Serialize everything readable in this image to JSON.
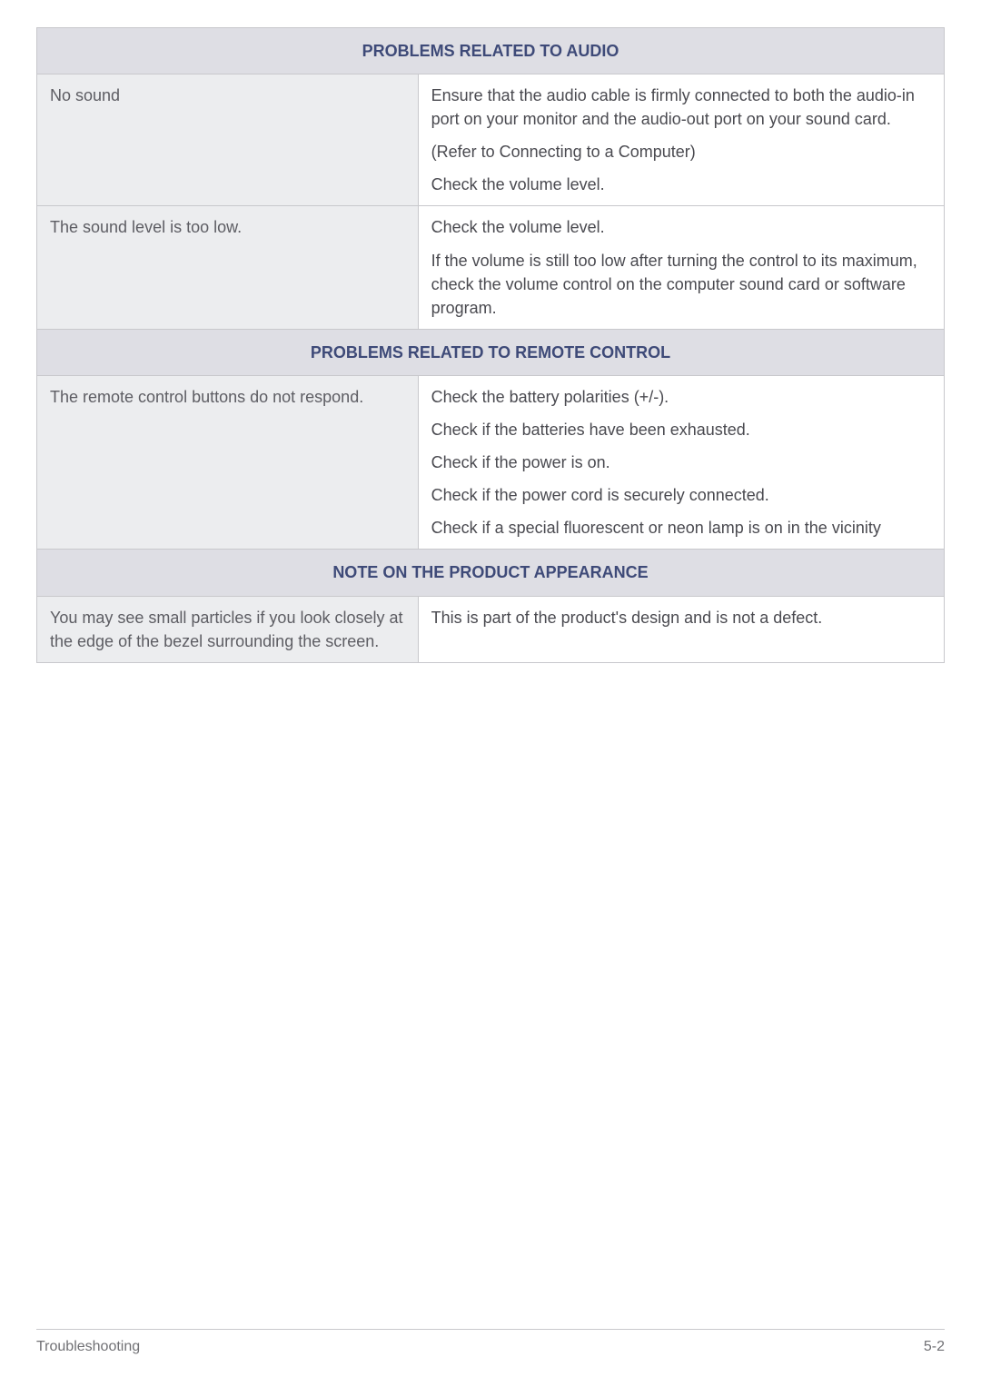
{
  "colors": {
    "border": "#c8c8cc",
    "section_header_bg": "#dedee4",
    "section_header_text": "#3e4a78",
    "left_col_bg": "#ecedef",
    "left_col_text": "#5d5d63",
    "right_col_bg": "#ffffff",
    "body_text": "#4a4a50",
    "footer_text": "#707074"
  },
  "typography": {
    "body_fontsize": 18,
    "header_fontsize": 18,
    "footer_fontsize": 16
  },
  "sections": [
    {
      "header": "PROBLEMS RELATED TO AUDIO",
      "rows": [
        {
          "problem": "No sound",
          "solutions": [
            "Ensure that the audio cable is firmly connected to both the audio-in port on your monitor and the audio-out port on your sound card.",
            "(Refer to Connecting to a Computer)",
            "Check the volume level."
          ]
        },
        {
          "problem": "The sound level is too low.",
          "solutions": [
            "Check the volume level.",
            "If the volume is still too low after turning the control to its maximum, check the volume control on the computer sound card or software program."
          ]
        }
      ]
    },
    {
      "header": "PROBLEMS RELATED TO REMOTE CONTROL",
      "rows": [
        {
          "problem": "The remote control buttons do not respond.",
          "solutions": [
            "Check the battery polarities (+/-).",
            "Check if the batteries have been exhausted.",
            "Check if the power is on.",
            "Check if the power cord is securely connected.",
            "Check if a special fluorescent or neon lamp is on in the vicinity"
          ]
        }
      ]
    },
    {
      "header": "NOTE ON THE PRODUCT APPEARANCE",
      "rows": [
        {
          "problem": "You may see small particles if you look closely at the edge of the bezel surrounding the screen.",
          "solutions": [
            "This is part of the product's design and is not a defect."
          ]
        }
      ]
    }
  ],
  "footer": {
    "left": "Troubleshooting",
    "right": "5-2"
  }
}
